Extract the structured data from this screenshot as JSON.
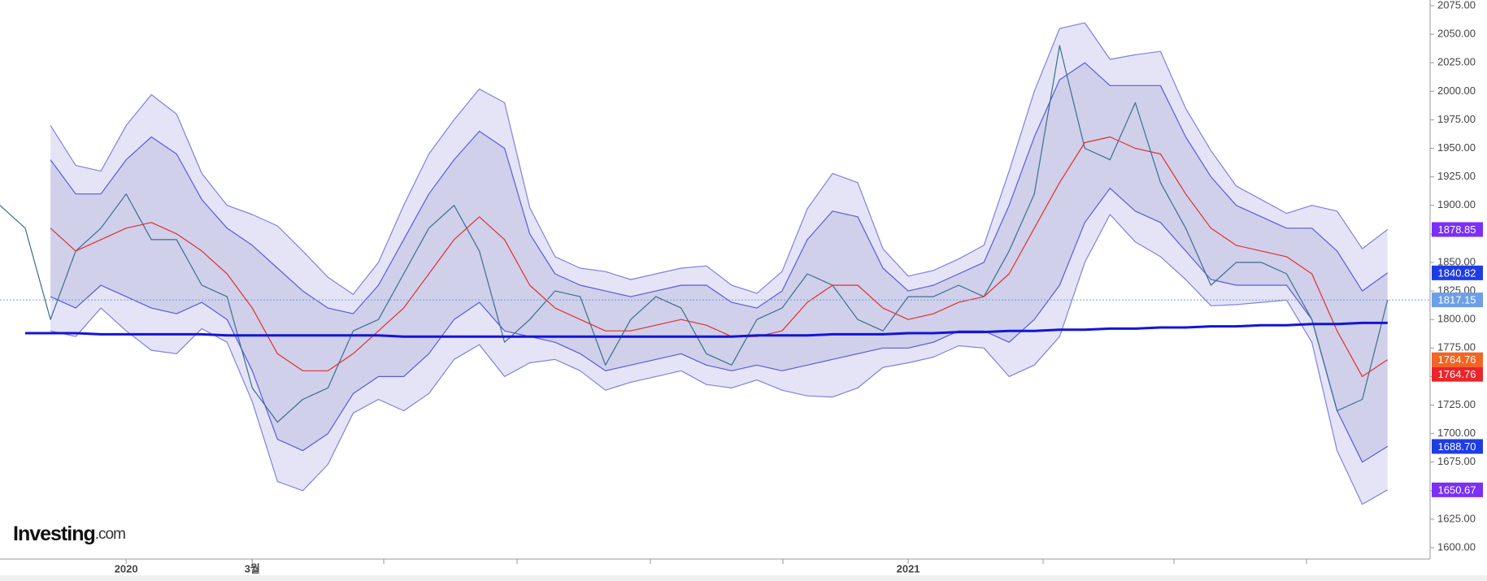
{
  "chart_data": {
    "type": "line",
    "logo": {
      "name": "Investing",
      "suffix": ".com"
    },
    "categories": [
      null,
      null,
      null,
      null,
      null,
      "2020",
      null,
      null,
      null,
      null,
      "3월",
      null,
      null,
      null,
      null,
      null,
      null,
      null,
      null,
      null,
      null,
      null,
      null,
      null,
      null,
      null,
      null,
      null,
      null,
      null,
      null,
      null,
      null,
      null,
      null,
      null,
      "2021",
      null,
      null,
      null,
      null,
      null,
      null,
      null,
      null,
      null,
      null,
      null,
      null,
      null,
      null,
      null,
      null,
      null,
      null,
      null
    ],
    "ylim": [
      1600,
      2075
    ],
    "yticks": [
      {
        "value": 1600,
        "label": "1600.00"
      },
      {
        "value": 1625,
        "label": "1625.00"
      },
      {
        "value": 1650,
        "label": "1650.00"
      },
      {
        "value": 1675,
        "label": "1675.00"
      },
      {
        "value": 1700,
        "label": "1700.00"
      },
      {
        "value": 1725,
        "label": "1725.00"
      },
      {
        "value": 1750,
        "label": "1750.00"
      },
      {
        "value": 1775,
        "label": "1775.00"
      },
      {
        "value": 1800,
        "label": "1800.00"
      },
      {
        "value": 1825,
        "label": "1825.00"
      },
      {
        "value": 1850,
        "label": "1850.00"
      },
      {
        "value": 1875,
        "label": "1875.00"
      },
      {
        "value": 1900,
        "label": "1900.00"
      },
      {
        "value": 1925,
        "label": "1925.00"
      },
      {
        "value": 1950,
        "label": "1950.00"
      },
      {
        "value": 1975,
        "label": "1975.00"
      },
      {
        "value": 2000,
        "label": "2000.00"
      },
      {
        "value": 2025,
        "label": "2025.00"
      },
      {
        "value": 2050,
        "label": "2050.00"
      },
      {
        "value": 2075,
        "label": "2075.00"
      }
    ],
    "grid": false,
    "series": [
      {
        "color": "#8080e0",
        "fill": "#e4e4f6",
        "values": [
          null,
          null,
          1970,
          1935,
          1930,
          1970,
          1997,
          1980,
          1928,
          1900,
          1892,
          1882,
          1860,
          1837,
          1822,
          1850,
          1900,
          1945,
          1975,
          2002,
          1990,
          1898,
          1855,
          1845,
          1842,
          1835,
          1840,
          1845,
          1847,
          1830,
          1823,
          1842,
          1897,
          1928,
          1920,
          1862,
          1838,
          1843,
          1853,
          1865,
          1930,
          2000,
          2055,
          2060,
          2028,
          2032,
          2035,
          1985,
          1948,
          1917,
          1905,
          1893,
          1900,
          1895,
          1862,
          1878.85
        ]
      },
      {
        "color": "#8080e0",
        "values": [
          null,
          null,
          1790,
          1785,
          1810,
          1790,
          1773,
          1770,
          1792,
          1780,
          1728,
          1658,
          1650,
          1673,
          1718,
          1730,
          1720,
          1735,
          1765,
          1778,
          1750,
          1762,
          1765,
          1755,
          1738,
          1745,
          1750,
          1755,
          1743,
          1740,
          1747,
          1738,
          1733,
          1732,
          1740,
          1758,
          1762,
          1767,
          1777,
          1775,
          1750,
          1760,
          1785,
          1850,
          1892,
          1868,
          1855,
          1835,
          1812,
          1813,
          1815,
          1817,
          1780,
          1685,
          1638,
          1650.67
        ]
      },
      {
        "color": "#5a5ae0",
        "fill": "#d0d0ea",
        "values": [
          null,
          null,
          1940,
          1910,
          1910,
          1940,
          1960,
          1945,
          1905,
          1880,
          1865,
          1845,
          1825,
          1810,
          1805,
          1830,
          1870,
          1910,
          1940,
          1965,
          1950,
          1875,
          1840,
          1830,
          1825,
          1820,
          1825,
          1830,
          1830,
          1815,
          1810,
          1825,
          1870,
          1895,
          1890,
          1845,
          1825,
          1830,
          1840,
          1850,
          1900,
          1960,
          2010,
          2025,
          2005,
          2005,
          2005,
          1960,
          1925,
          1900,
          1890,
          1880,
          1880,
          1860,
          1825,
          1840.82
        ]
      },
      {
        "color": "#5a5ae0",
        "values": [
          null,
          null,
          1820,
          1810,
          1830,
          1820,
          1810,
          1805,
          1815,
          1800,
          1755,
          1695,
          1685,
          1700,
          1735,
          1750,
          1750,
          1770,
          1800,
          1815,
          1790,
          1785,
          1780,
          1770,
          1755,
          1760,
          1765,
          1770,
          1760,
          1755,
          1760,
          1755,
          1760,
          1765,
          1770,
          1775,
          1775,
          1780,
          1790,
          1790,
          1780,
          1800,
          1830,
          1885,
          1915,
          1895,
          1885,
          1860,
          1835,
          1830,
          1830,
          1830,
          1800,
          1720,
          1675,
          1688.7
        ]
      },
      {
        "color": "#3c6e8f",
        "values": [
          1900,
          1880,
          1800,
          1860,
          1880,
          1910,
          1870,
          1870,
          1830,
          1820,
          1740,
          1710,
          1730,
          1740,
          1790,
          1800,
          1840,
          1880,
          1900,
          1860,
          1780,
          1800,
          1825,
          1820,
          1760,
          1800,
          1820,
          1810,
          1770,
          1760,
          1800,
          1810,
          1840,
          1830,
          1800,
          1790,
          1820,
          1820,
          1830,
          1820,
          1860,
          1910,
          2040,
          1950,
          1940,
          1990,
          1920,
          1880,
          1830,
          1850,
          1850,
          1840,
          1800,
          1720,
          1730,
          1817.15
        ]
      },
      {
        "color": "#e03030",
        "values": [
          null,
          null,
          1880,
          1860,
          1870,
          1880,
          1885,
          1875,
          1860,
          1840,
          1810,
          1770,
          1755,
          1755,
          1770,
          1790,
          1810,
          1840,
          1870,
          1890,
          1870,
          1830,
          1810,
          1800,
          1790,
          1790,
          1795,
          1800,
          1795,
          1785,
          1785,
          1790,
          1815,
          1830,
          1830,
          1810,
          1800,
          1805,
          1815,
          1820,
          1840,
          1880,
          1920,
          1955,
          1960,
          1950,
          1945,
          1910,
          1880,
          1865,
          1860,
          1855,
          1840,
          1790,
          1750,
          1764.76
        ]
      },
      {
        "color": "#1414d8",
        "width": 3,
        "values": [
          null,
          1788,
          1788,
          1788,
          1787,
          1787,
          1787,
          1787,
          1787,
          1786,
          1786,
          1786,
          1786,
          1786,
          1786,
          1786,
          1785,
          1785,
          1785,
          1785,
          1785,
          1785,
          1785,
          1785,
          1785,
          1785,
          1785,
          1785,
          1785,
          1785,
          1786,
          1786,
          1786,
          1787,
          1787,
          1787,
          1788,
          1788,
          1789,
          1789,
          1790,
          1790,
          1791,
          1791,
          1792,
          1792,
          1793,
          1793,
          1794,
          1794,
          1795,
          1795,
          1796,
          1796,
          1797,
          1797
        ]
      }
    ],
    "price_labels": [
      {
        "value": 1878.85,
        "color": "#7b2ff7"
      },
      {
        "value": 1840.82,
        "color": "#1e3ce6"
      },
      {
        "value": 1817.15,
        "color": "#6c9fe8"
      },
      {
        "value": 1764.76,
        "color": "#f26522"
      },
      {
        "value": 1764.76,
        "color": "#e8262b"
      },
      {
        "value": 1688.7,
        "label": "1688.70",
        "color": "#1e3ce6"
      },
      {
        "value": 1650.67,
        "color": "#7b2ff7"
      }
    ]
  }
}
